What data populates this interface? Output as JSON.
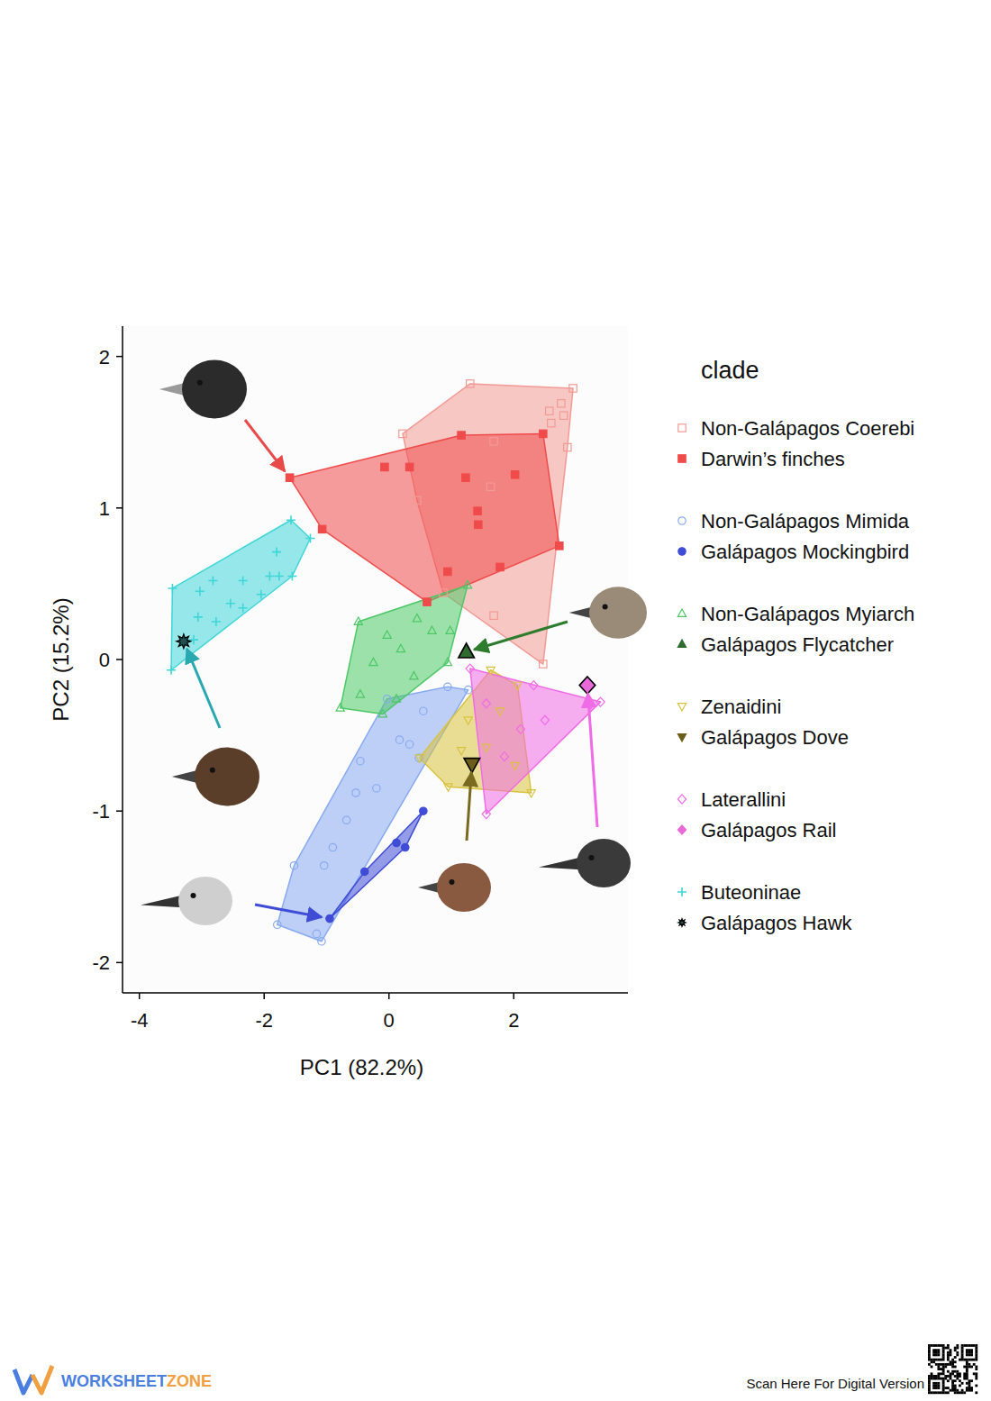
{
  "chart_data": {
    "type": "scatter",
    "xlabel": "PC1 (82.2%)",
    "ylabel": "PC2 (15.2%)",
    "legend_title": "clade",
    "legend": "right",
    "xlim": [
      -4.27,
      3.83
    ],
    "ylim": [
      -2.2,
      2.2
    ],
    "xticks": [
      -4,
      -2,
      0,
      2
    ],
    "yticks": [
      -2,
      -1,
      0,
      1,
      2
    ],
    "grid": false,
    "series": [
      {
        "name": "Non-Galápagos Coerebi",
        "color": "#f39a94",
        "marker": "square-open",
        "x": [
          1.3,
          0.22,
          2.95,
          2.76,
          2.57,
          2.8,
          2.86,
          1.68,
          2.47,
          1.68,
          1.63,
          0.45,
          0.87,
          2.6
        ],
        "y": [
          1.82,
          1.49,
          1.79,
          1.69,
          1.64,
          1.61,
          1.4,
          1.44,
          -0.03,
          0.29,
          1.14,
          1.05,
          0.44,
          1.56
        ]
      },
      {
        "name": "Darwin’s finches",
        "color": "#f04b4b",
        "marker": "square-filled",
        "x": [
          -1.59,
          -1.07,
          0.61,
          2.73,
          2.47,
          1.16,
          -0.07,
          0.33,
          1.23,
          2.02,
          1.43,
          1.78,
          0.94,
          1.42
        ],
        "y": [
          1.2,
          0.86,
          0.38,
          0.75,
          1.49,
          1.48,
          1.27,
          1.27,
          1.2,
          1.22,
          0.89,
          0.61,
          0.58,
          0.98
        ]
      },
      {
        "name": "Non-Galápagos Mimida",
        "color": "#88aaf0",
        "marker": "circle-open",
        "x": [
          -1.79,
          -1.52,
          -1.16,
          -1.08,
          -0.9,
          -0.53,
          -0.2,
          0.17,
          0.33,
          0.94,
          1.27,
          0.48,
          -0.03,
          -0.46,
          -1.04,
          -0.68,
          0.55
        ],
        "y": [
          -1.75,
          -1.36,
          -1.81,
          -1.86,
          -1.24,
          -0.88,
          -0.85,
          -0.53,
          -0.56,
          -0.18,
          -0.2,
          -0.65,
          -0.26,
          -0.67,
          -1.36,
          -1.06,
          -0.34
        ]
      },
      {
        "name": "Galápagos Mockingbird",
        "color": "#3e4cd6",
        "marker": "circle-filled",
        "x": [
          -0.95,
          -0.39,
          0.26,
          0.55,
          0.12
        ],
        "y": [
          -1.71,
          -1.4,
          -1.24,
          -1.0,
          -1.21
        ]
      },
      {
        "name": "Non-Galápagos Myiarch",
        "color": "#4cc866",
        "marker": "triangle-open",
        "x": [
          -0.78,
          -0.49,
          1.26,
          0.94,
          -0.1,
          0.45,
          -0.03,
          0.19,
          0.4,
          -0.46,
          0.69,
          0.12,
          -0.25,
          0.98
        ],
        "y": [
          -0.32,
          0.25,
          0.49,
          -0.02,
          -0.36,
          0.27,
          0.16,
          0.07,
          -0.11,
          -0.23,
          0.19,
          -0.26,
          -0.02,
          0.19
        ]
      },
      {
        "name": "Galápagos Flycatcher",
        "color": "#2f6b2f",
        "marker": "triangle-filled",
        "x": [
          1.24
        ],
        "y": [
          0.05
        ]
      },
      {
        "name": "Zenaidini",
        "color": "#d9c23e",
        "marker": "triangle-down-open",
        "x": [
          0.49,
          1.63,
          2.06,
          2.28,
          0.95,
          1.16,
          1.56,
          1.78,
          1.27,
          2.02
        ],
        "y": [
          -0.65,
          -0.07,
          -0.17,
          -0.88,
          -0.84,
          -0.6,
          -0.58,
          -0.34,
          -0.4,
          -0.7
        ]
      },
      {
        "name": "Galápagos Dove",
        "color": "#6b5d1a",
        "marker": "triangle-down-filled",
        "x": [
          1.33
        ],
        "y": [
          -0.69
        ]
      },
      {
        "name": "Laterallini",
        "color": "#f06ce6",
        "marker": "diamond-open",
        "x": [
          1.3,
          2.32,
          3.39,
          1.56,
          2.5,
          1.85,
          2.11,
          1.56,
          3.22
        ],
        "y": [
          -0.06,
          -0.17,
          -0.28,
          -1.02,
          -0.4,
          -0.64,
          -0.46,
          -0.29,
          -0.3
        ]
      },
      {
        "name": "Galápagos Rail",
        "color": "#e86ad8",
        "marker": "diamond-filled",
        "x": [
          3.18
        ],
        "y": [
          -0.17
        ]
      },
      {
        "name": "Buteoninae",
        "color": "#3fd6d8",
        "marker": "plus",
        "x": [
          -3.47,
          -1.57,
          -1.26,
          -1.55,
          -3.49,
          -3.03,
          -2.82,
          -3.06,
          -2.77,
          -2.54,
          -2.34,
          -2.05,
          -1.91,
          -1.76,
          -1.8,
          -3.13,
          -2.34
        ],
        "y": [
          0.47,
          0.92,
          0.8,
          0.55,
          -0.07,
          0.45,
          0.52,
          0.28,
          0.25,
          0.37,
          0.34,
          0.43,
          0.55,
          0.55,
          0.71,
          0.13,
          0.52
        ]
      },
      {
        "name": "Galápagos Hawk",
        "color": "#1f4f52",
        "marker": "star",
        "x": [
          -3.29
        ],
        "y": [
          0.12
        ]
      }
    ]
  },
  "footer": {
    "brand": [
      "WORKSHEET",
      "ZONE"
    ],
    "scan_text": "Scan Here For Digital Version"
  }
}
